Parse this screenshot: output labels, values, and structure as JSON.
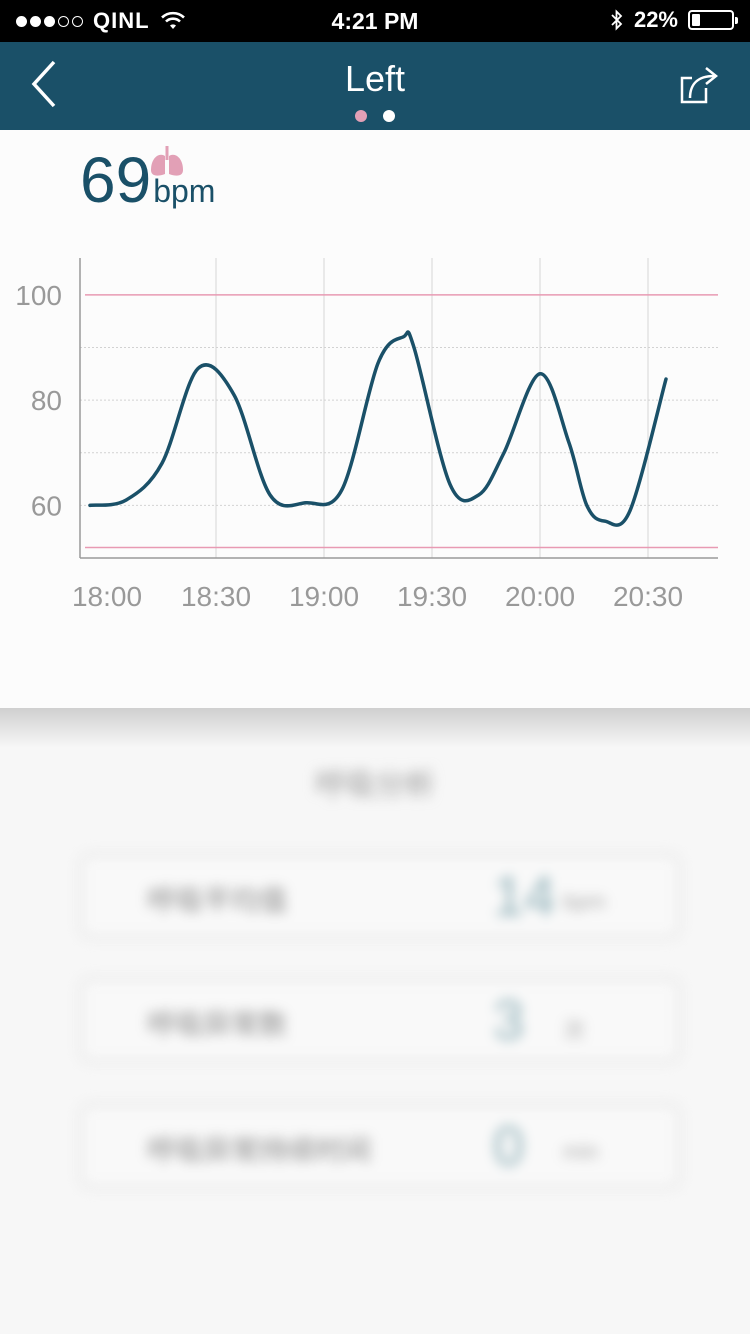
{
  "status_bar": {
    "carrier": "QINL",
    "time": "4:21 PM",
    "battery": "22%",
    "battery_level": 0.22,
    "signal_dots_filled": 3,
    "signal_dots_total": 5
  },
  "nav": {
    "title": "Left",
    "back_icon": "chevron-left-icon",
    "share_icon": "share-icon",
    "page_count": 2,
    "active_page": 0,
    "color": "#1a5068",
    "active_dot_color": "#e2a0b6"
  },
  "reading": {
    "value": "69",
    "unit": "bpm",
    "icon": "lungs-icon"
  },
  "chart_data": {
    "type": "line",
    "x_tick_labels": [
      "18:00",
      "18:30",
      "19:00",
      "19:30",
      "20:00",
      "20:30"
    ],
    "y_tick_labels": [
      "60",
      "80",
      "100"
    ],
    "ylim": [
      50,
      107
    ],
    "threshold_lines": [
      100,
      52
    ],
    "threshold_color": "#e89ab3",
    "line_color": "#1a5068",
    "grid": true,
    "series": [
      {
        "x_minutes": [
          0,
          10,
          20,
          30,
          40,
          50,
          60,
          70,
          80,
          87,
          90,
          100,
          108,
          115,
          125,
          133,
          138,
          143,
          150,
          160
        ],
        "values": [
          60,
          61,
          68,
          86,
          81,
          62,
          60.5,
          63,
          87,
          92,
          90,
          64,
          62,
          70,
          85,
          72,
          60,
          57,
          59,
          84
        ]
      }
    ]
  },
  "blurred_section": {
    "heading": "呼吸分析",
    "stats": [
      {
        "label": "呼吸平均值",
        "value": "14",
        "unit": "bpm"
      },
      {
        "label": "呼吸异常数",
        "value": "3",
        "unit": "次"
      },
      {
        "label": "呼吸异常持续时间",
        "value": "0",
        "unit": "min"
      }
    ]
  }
}
